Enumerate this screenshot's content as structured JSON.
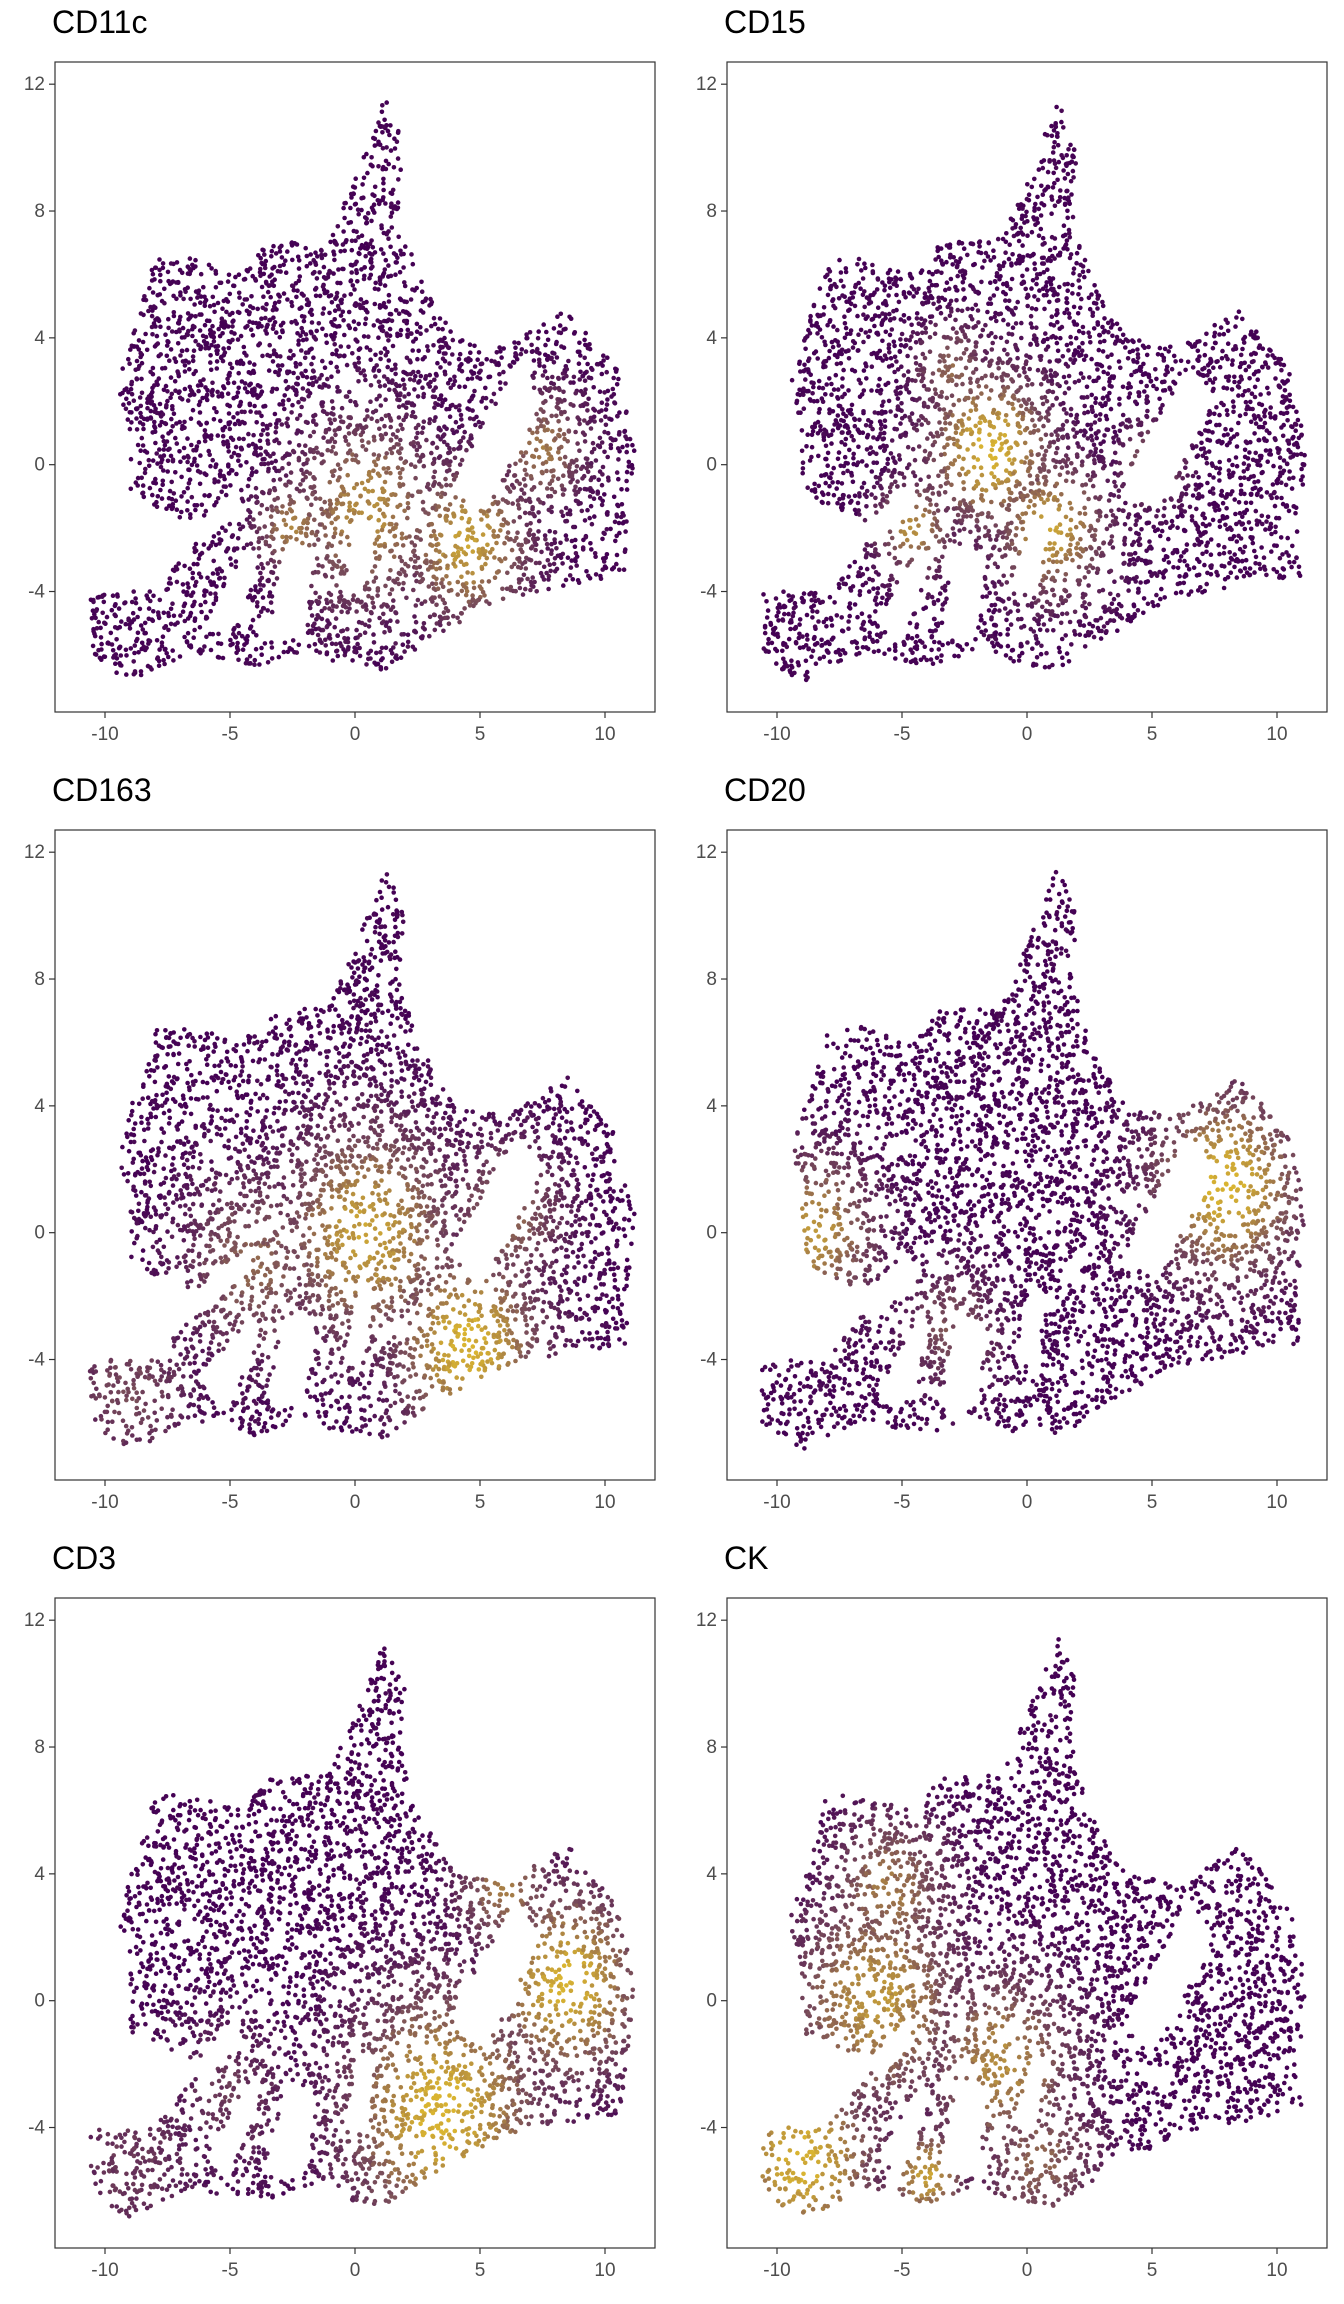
{
  "colors": {
    "low": "#440154",
    "mid": "#7a4f5a",
    "high": "#d9b431",
    "frame": "#333333",
    "tick": "#4d4d4d"
  },
  "chart_data": [
    {
      "type": "scatter",
      "title": "CD11c",
      "xlabel": "",
      "ylabel": "",
      "xlim": [
        -12,
        12
      ],
      "ylim": [
        -7.8,
        12.7
      ],
      "xticks": [
        "-10",
        "-5",
        "0",
        "5",
        "10"
      ],
      "yticks": [
        "12",
        "8",
        "4",
        "0",
        "-4"
      ],
      "grid": false,
      "hotspots": [
        {
          "x": 0.5,
          "y": -1.5,
          "r": 3.0,
          "v": 0.8
        },
        {
          "x": 4.5,
          "y": -2.5,
          "r": 2.5,
          "v": 0.9
        },
        {
          "x": 7.5,
          "y": 0.5,
          "r": 1.8,
          "v": 0.7
        },
        {
          "x": -2.5,
          "y": -2.0,
          "r": 1.5,
          "v": 0.75
        }
      ]
    },
    {
      "type": "scatter",
      "title": "CD15",
      "xlabel": "",
      "ylabel": "",
      "xlim": [
        -12,
        12
      ],
      "ylim": [
        -7.8,
        12.7
      ],
      "xticks": [
        "-10",
        "-5",
        "0",
        "5",
        "10"
      ],
      "yticks": [
        "12",
        "8",
        "4",
        "0",
        "-4"
      ],
      "grid": false,
      "hotspots": [
        {
          "x": -1.5,
          "y": 0.5,
          "r": 2.5,
          "v": 1.0
        },
        {
          "x": 1.0,
          "y": -2.0,
          "r": 2.2,
          "v": 0.9
        },
        {
          "x": -4.5,
          "y": -2.0,
          "r": 1.5,
          "v": 0.8
        },
        {
          "x": 5.0,
          "y": 0.0,
          "r": 1.2,
          "v": 0.7
        },
        {
          "x": -3.0,
          "y": 3.0,
          "r": 1.5,
          "v": 0.6
        }
      ]
    },
    {
      "type": "scatter",
      "title": "CD163",
      "xlabel": "",
      "ylabel": "",
      "xlim": [
        -12,
        12
      ],
      "ylim": [
        -7.8,
        12.7
      ],
      "xticks": [
        "-10",
        "-5",
        "0",
        "5",
        "10"
      ],
      "yticks": [
        "12",
        "8",
        "4",
        "0",
        "-4"
      ],
      "grid": false,
      "hotspots": [
        {
          "x": 0.5,
          "y": 0.0,
          "r": 3.5,
          "v": 0.9
        },
        {
          "x": 4.5,
          "y": -3.5,
          "r": 3.0,
          "v": 1.0
        },
        {
          "x": -4.0,
          "y": -1.0,
          "r": 3.0,
          "v": 0.6
        },
        {
          "x": 6.0,
          "y": 0.5,
          "r": 2.5,
          "v": 0.6
        },
        {
          "x": -9.0,
          "y": -5.0,
          "r": 2.5,
          "v": 0.45
        }
      ]
    },
    {
      "type": "scatter",
      "title": "CD20",
      "xlabel": "",
      "ylabel": "",
      "xlim": [
        -12,
        12
      ],
      "ylim": [
        -7.8,
        12.7
      ],
      "xticks": [
        "-10",
        "-5",
        "0",
        "5",
        "10"
      ],
      "yticks": [
        "12",
        "8",
        "4",
        "0",
        "-4"
      ],
      "grid": false,
      "hotspots": [
        {
          "x": 8.0,
          "y": 1.5,
          "r": 3.0,
          "v": 1.0
        },
        {
          "x": -8.5,
          "y": 0.0,
          "r": 2.5,
          "v": 0.85
        },
        {
          "x": -3.0,
          "y": -3.0,
          "r": 2.0,
          "v": 0.5
        }
      ]
    },
    {
      "type": "scatter",
      "title": "CD3",
      "xlabel": "",
      "ylabel": "",
      "xlim": [
        -12,
        12
      ],
      "ylim": [
        -7.8,
        12.7
      ],
      "xticks": [
        "-10",
        "-5",
        "0",
        "5",
        "10"
      ],
      "yticks": [
        "12",
        "8",
        "4",
        "0",
        "-4"
      ],
      "grid": false,
      "hotspots": [
        {
          "x": 3.5,
          "y": -3.5,
          "r": 4.0,
          "v": 1.0
        },
        {
          "x": 8.5,
          "y": 0.5,
          "r": 3.0,
          "v": 1.0
        },
        {
          "x": 6.0,
          "y": 3.5,
          "r": 2.0,
          "v": 0.7
        },
        {
          "x": -9.0,
          "y": -5.0,
          "r": 3.0,
          "v": 0.35
        },
        {
          "x": -5.0,
          "y": -3.0,
          "r": 2.5,
          "v": 0.35
        }
      ]
    },
    {
      "type": "scatter",
      "title": "CK",
      "xlabel": "",
      "ylabel": "",
      "xlim": [
        -12,
        12
      ],
      "ylim": [
        -7.8,
        12.7
      ],
      "xticks": [
        "-10",
        "-5",
        "0",
        "5",
        "10"
      ],
      "yticks": [
        "12",
        "8",
        "4",
        "0",
        "-4"
      ],
      "grid": false,
      "hotspots": [
        {
          "x": -9.0,
          "y": -5.0,
          "r": 3.0,
          "v": 1.0
        },
        {
          "x": -6.0,
          "y": 0.0,
          "r": 3.5,
          "v": 0.85
        },
        {
          "x": -5.5,
          "y": 3.5,
          "r": 2.5,
          "v": 0.7
        },
        {
          "x": -1.0,
          "y": -2.0,
          "r": 3.0,
          "v": 0.8
        },
        {
          "x": 0.5,
          "y": -5.0,
          "r": 2.5,
          "v": 0.6
        },
        {
          "x": -4.0,
          "y": -5.5,
          "r": 1.5,
          "v": 0.9
        }
      ]
    }
  ]
}
